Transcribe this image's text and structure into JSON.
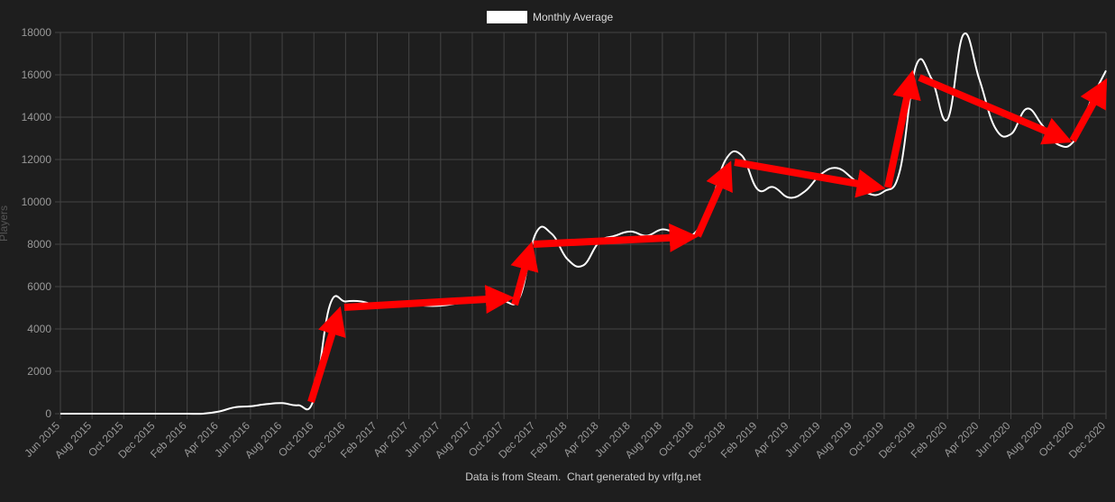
{
  "chart_data": {
    "type": "line",
    "legend_label": "Monthly Average",
    "y_label": "Players",
    "footer": "Data is from Steam.  Chart generated by vrlfg.net",
    "categories": [
      "Jun 2015",
      null,
      "Aug 2015",
      null,
      "Oct 2015",
      null,
      "Dec 2015",
      null,
      "Feb 2016",
      null,
      "Apr 2016",
      null,
      "Jun 2016",
      null,
      "Aug 2016",
      null,
      "Oct 2016",
      null,
      "Dec 2016",
      null,
      "Feb 2017",
      null,
      "Apr 2017",
      null,
      "Jun 2017",
      null,
      "Aug 2017",
      null,
      "Oct 2017",
      null,
      "Dec 2017",
      null,
      "Feb 2018",
      null,
      "Apr 2018",
      null,
      "Jun 2018",
      null,
      "Aug 2018",
      null,
      "Oct 2018",
      null,
      "Dec 2018",
      null,
      "Feb 2019",
      null,
      "Apr 2019",
      null,
      "Jun 2019",
      null,
      "Aug 2019",
      null,
      "Oct 2019",
      null,
      "Dec 2019",
      null,
      "Feb 2020",
      null,
      "Apr 2020",
      null,
      "Jun 2020",
      null,
      "Aug 2020",
      null,
      "Oct 2020",
      null,
      "Dec 2020"
    ],
    "series": [
      {
        "name": "Monthly Average",
        "color": "#ffffff",
        "values": [
          0,
          0,
          0,
          0,
          0,
          0,
          0,
          0,
          0,
          0,
          100,
          300,
          350,
          450,
          500,
          400,
          700,
          5100,
          5300,
          5300,
          5100,
          5100,
          5200,
          5100,
          5100,
          5200,
          5300,
          5400,
          5300,
          5500,
          8500,
          8500,
          7300,
          7000,
          8100,
          8400,
          8600,
          8400,
          8700,
          8500,
          8500,
          9800,
          12000,
          12200,
          10600,
          10700,
          10200,
          10500,
          11300,
          11600,
          11100,
          10400,
          10500,
          11500,
          16400,
          15800,
          13900,
          17900,
          15800,
          13500,
          13200,
          14400,
          13600,
          12700,
          12900,
          14700,
          16200
        ]
      }
    ],
    "ylim": [
      0,
      18000
    ],
    "yticks": [
      0,
      2000,
      4000,
      6000,
      8000,
      10000,
      12000,
      14000,
      16000,
      18000
    ],
    "grid": true
  }
}
